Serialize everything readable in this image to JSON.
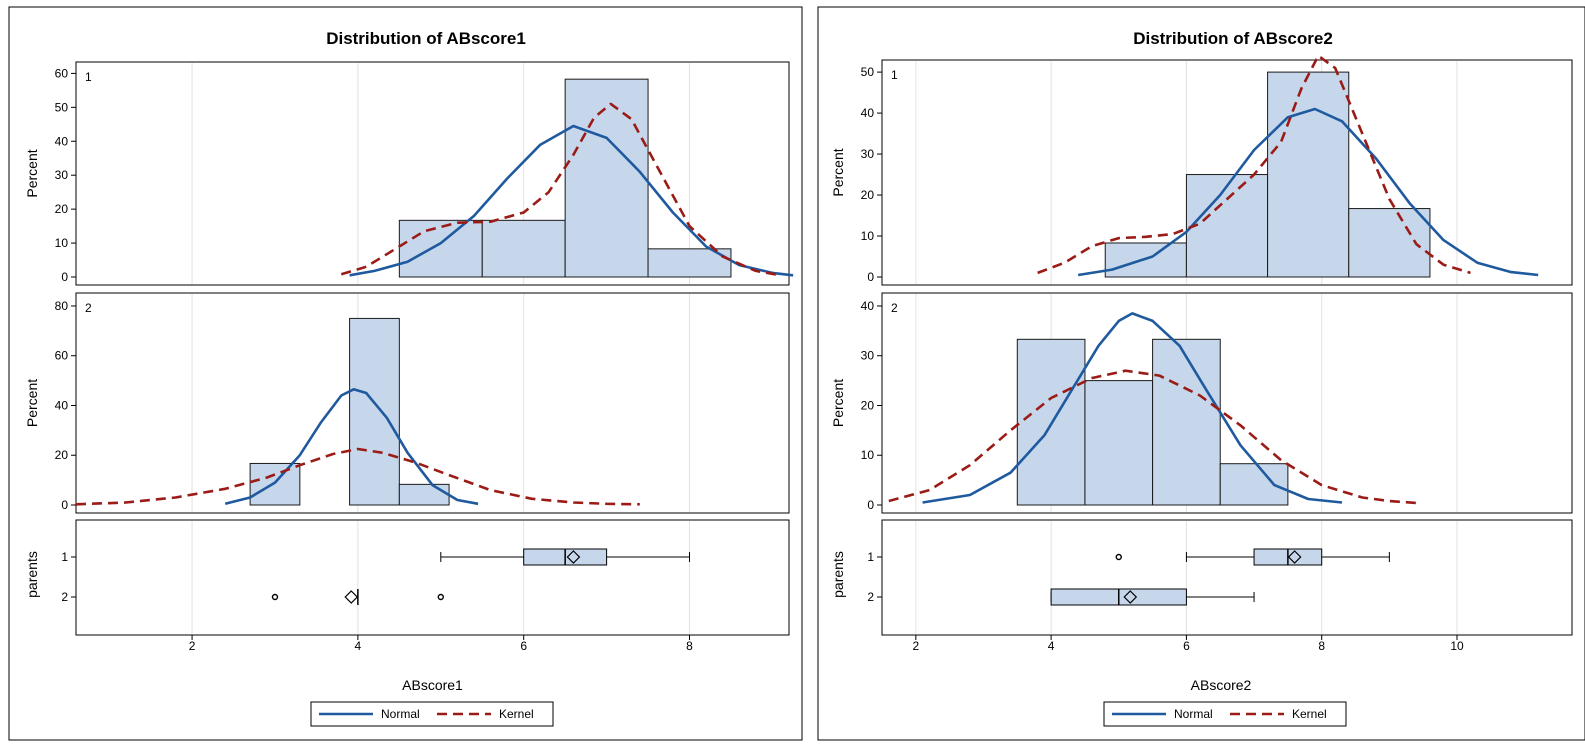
{
  "colors": {
    "bar_fill": "#c6d7ec",
    "bar_stroke": "#1a1a1a",
    "normal_line": "#1f5a9f",
    "kernel_line": "#9b1b16",
    "grid": "#e2e2e2",
    "box_fill": "#c6d7ec"
  },
  "chart_data": [
    {
      "type": "histogram",
      "title": "Distribution of ABscore1",
      "xlabel": "ABscore1",
      "xlim": [
        0.6,
        9.2
      ],
      "xticks": [
        2,
        4,
        6,
        8
      ],
      "legend": {
        "placement": "bottom",
        "entries": [
          "Normal",
          "Kernel"
        ]
      },
      "panels": [
        {
          "label": "1",
          "ylabel": "Percent",
          "ylim": [
            0,
            61
          ],
          "yticks": [
            0,
            10,
            20,
            30,
            40,
            50,
            60
          ],
          "bins": [
            {
              "x0": 4.5,
              "x1": 5.5,
              "y": 16.7
            },
            {
              "x0": 5.5,
              "x1": 6.5,
              "y": 16.7
            },
            {
              "x0": 6.5,
              "x1": 7.5,
              "y": 58.3
            },
            {
              "x0": 7.5,
              "x1": 8.5,
              "y": 8.3
            }
          ],
          "normal": {
            "x": [
              3.9,
              4.2,
              4.6,
              5.0,
              5.4,
              5.8,
              6.2,
              6.6,
              7.0,
              7.4,
              7.8,
              8.2,
              8.6,
              9.0,
              9.25
            ],
            "y": [
              0.5,
              1.8,
              4.5,
              10,
              18,
              29,
              39,
              44.5,
              41,
              31,
              19,
              9,
              3.5,
              1.2,
              0.5
            ]
          },
          "kernel": {
            "x": [
              3.8,
              4.1,
              4.5,
              4.8,
              5.2,
              5.6,
              6.0,
              6.3,
              6.6,
              6.85,
              7.05,
              7.3,
              7.6,
              8.0,
              8.4,
              8.8,
              9.1
            ],
            "y": [
              0.8,
              3,
              9,
              13.5,
              16,
              16.3,
              19,
              25,
              36,
              47,
              51,
              46.5,
              33,
              15,
              6,
              1.8,
              0.5
            ]
          }
        },
        {
          "label": "2",
          "ylabel": "Percent",
          "ylim": [
            0,
            82
          ],
          "yticks": [
            0,
            20,
            40,
            60,
            80
          ],
          "bins": [
            {
              "x0": 2.7,
              "x1": 3.3,
              "y": 16.7
            },
            {
              "x0": 3.9,
              "x1": 4.5,
              "y": 75
            },
            {
              "x0": 4.5,
              "x1": 5.1,
              "y": 8.3
            }
          ],
          "normal": {
            "x": [
              2.4,
              2.7,
              3.0,
              3.3,
              3.55,
              3.8,
              3.95,
              4.1,
              4.35,
              4.6,
              4.9,
              5.2,
              5.45
            ],
            "y": [
              0.5,
              3,
              9,
              20,
              33,
              44,
              46.5,
              45,
              35,
              21,
              8,
              2,
              0.5
            ]
          },
          "kernel": {
            "x": [
              0.6,
              1.2,
              1.8,
              2.4,
              2.9,
              3.3,
              3.7,
              4.0,
              4.3,
              4.7,
              5.1,
              5.6,
              6.1,
              6.6,
              7.0,
              7.4
            ],
            "y": [
              0.3,
              1,
              3,
              6.5,
              11,
              16,
              20.5,
              22.5,
              21,
              17,
              12,
              6,
              2.5,
              1,
              0.5,
              0.3
            ]
          }
        }
      ],
      "boxplot": {
        "ylabel": "parents",
        "groups": [
          {
            "label": "1",
            "min": 5,
            "q1": 6,
            "median": 6.5,
            "q3": 7,
            "max": 8,
            "mean": 6.6,
            "outliers": []
          },
          {
            "label": "2",
            "min": 4,
            "q1": 4,
            "median": 4,
            "q3": 4,
            "max": 4,
            "mean": 3.92,
            "outliers": [
              3,
              5
            ]
          }
        ]
      }
    },
    {
      "type": "histogram",
      "title": "Distribution of ABscore2",
      "xlabel": "ABscore2",
      "xlim": [
        1.5,
        11.7
      ],
      "xticks": [
        2,
        4,
        6,
        8,
        10
      ],
      "legend": {
        "placement": "bottom",
        "entries": [
          "Normal",
          "Kernel"
        ]
      },
      "panels": [
        {
          "label": "1",
          "ylabel": "Percent",
          "ylim": [
            0,
            51
          ],
          "yticks": [
            0,
            10,
            20,
            30,
            40,
            50
          ],
          "bins": [
            {
              "x0": 4.8,
              "x1": 6.0,
              "y": 8.3
            },
            {
              "x0": 6.0,
              "x1": 7.2,
              "y": 25
            },
            {
              "x0": 7.2,
              "x1": 8.4,
              "y": 50
            },
            {
              "x0": 8.4,
              "x1": 9.6,
              "y": 16.7
            }
          ],
          "normal": {
            "x": [
              4.4,
              4.9,
              5.5,
              6.0,
              6.5,
              7.0,
              7.5,
              7.9,
              8.3,
              8.8,
              9.3,
              9.8,
              10.3,
              10.8,
              11.2
            ],
            "y": [
              0.5,
              1.8,
              5,
              11,
              20,
              31,
              39,
              41,
              38,
              29,
              18,
              9,
              3.5,
              1.2,
              0.5
            ]
          },
          "kernel": {
            "x": [
              3.8,
              4.2,
              4.6,
              5.0,
              5.4,
              5.8,
              6.2,
              6.6,
              7.0,
              7.4,
              7.7,
              7.95,
              8.2,
              8.6,
              9.0,
              9.4,
              9.8,
              10.2
            ],
            "y": [
              1,
              3.5,
              7.5,
              9.5,
              9.8,
              10.5,
              13,
              19,
              25,
              33,
              46,
              54,
              51,
              35,
              19,
              8,
              3,
              1
            ]
          }
        },
        {
          "label": "2",
          "ylabel": "Percent",
          "ylim": [
            0,
            41
          ],
          "yticks": [
            0,
            10,
            20,
            30,
            40
          ],
          "bins": [
            {
              "x0": 3.5,
              "x1": 4.5,
              "y": 33.3
            },
            {
              "x0": 4.5,
              "x1": 5.5,
              "y": 25
            },
            {
              "x0": 5.5,
              "x1": 6.5,
              "y": 33.3
            },
            {
              "x0": 6.5,
              "x1": 7.5,
              "y": 8.3
            }
          ],
          "normal": {
            "x": [
              2.1,
              2.8,
              3.4,
              3.9,
              4.3,
              4.7,
              5.0,
              5.2,
              5.5,
              5.9,
              6.3,
              6.8,
              7.3,
              7.8,
              8.3
            ],
            "y": [
              0.5,
              2,
              6.5,
              14,
              23,
              32,
              37,
              38.5,
              37,
              32,
              23,
              12,
              4,
              1.2,
              0.5
            ]
          },
          "kernel": {
            "x": [
              1.6,
              2.2,
              2.8,
              3.4,
              4.0,
              4.6,
              5.1,
              5.6,
              6.2,
              6.8,
              7.4,
              8.0,
              8.6,
              9.0,
              9.4
            ],
            "y": [
              0.8,
              3,
              8,
              15,
              21.5,
              25.5,
              27,
              26,
              22,
              16,
              9,
              4,
              1.5,
              0.8,
              0.4
            ]
          }
        }
      ],
      "boxplot": {
        "ylabel": "parents",
        "groups": [
          {
            "label": "1",
            "min": 6,
            "q1": 7,
            "median": 7.5,
            "q3": 8,
            "max": 9,
            "mean": 7.6,
            "outliers": [
              5
            ]
          },
          {
            "label": "2",
            "min": 4,
            "q1": 4,
            "median": 5,
            "q3": 6,
            "max": 7,
            "mean": 5.17,
            "outliers": []
          }
        ]
      }
    }
  ]
}
